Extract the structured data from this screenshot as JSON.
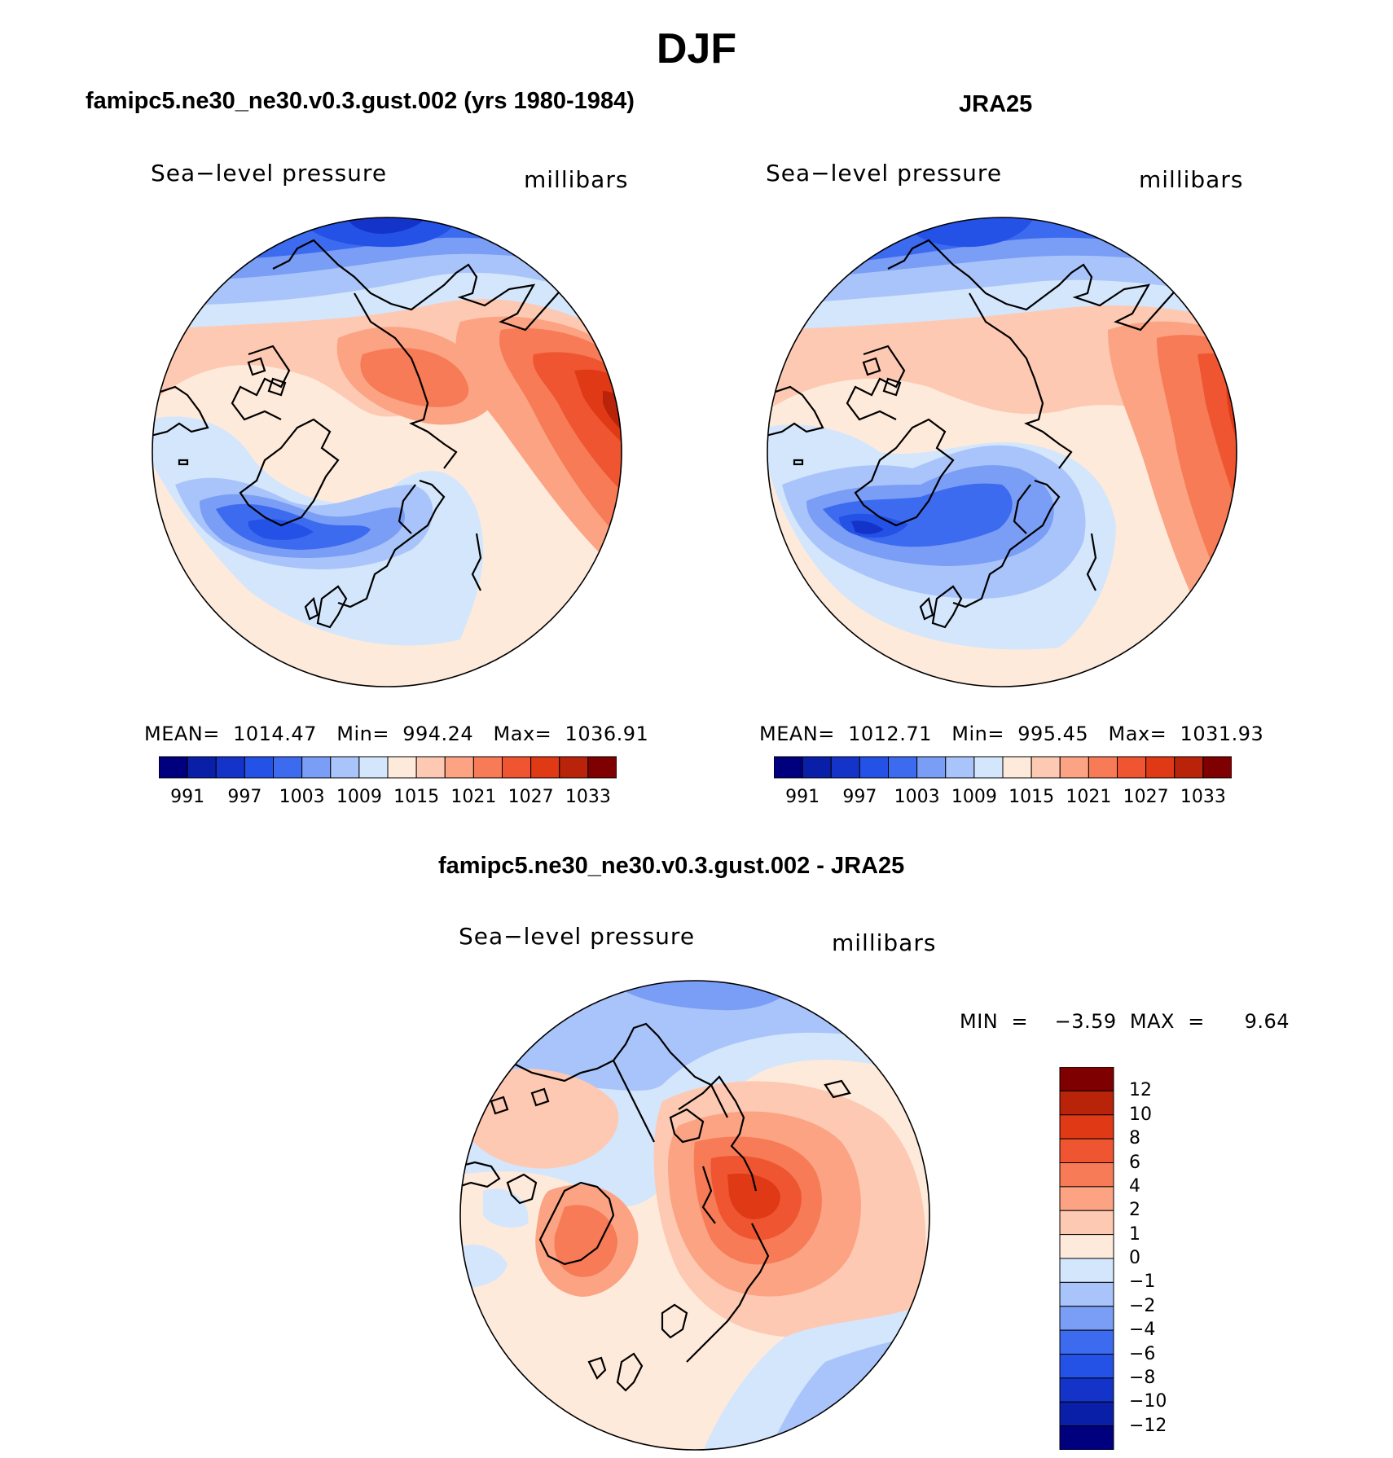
{
  "figure": {
    "title": "DJF"
  },
  "panels": [
    {
      "title": "famipc5.ne30_ne30.v0.3.gust.002 (yrs 1980-1984)",
      "variable": "Sea−level pressure",
      "units": "millibars",
      "stats": "MEAN=  1014.47   Min=  994.24   Max=  1036.91",
      "colorbar_labels": [
        "991",
        "997",
        "1003",
        "1009",
        "1015",
        "1021",
        "1027",
        "1033"
      ]
    },
    {
      "title": "JRA25",
      "variable": "Sea−level pressure",
      "units": "millibars",
      "stats": "MEAN=  1012.71   Min=  995.45   Max=  1031.93",
      "colorbar_labels": [
        "991",
        "997",
        "1003",
        "1009",
        "1015",
        "1021",
        "1027",
        "1033"
      ]
    },
    {
      "title": "famipc5.ne30_ne30.v0.3.gust.002 - JRA25",
      "variable": "Sea−level pressure",
      "units": "millibars",
      "stats": "MIN  =    −3.59  MAX  =      9.64",
      "colorbar_labels": [
        "12",
        "10",
        "8",
        "6",
        "4",
        "2",
        "1",
        "0",
        "−1",
        "−2",
        "−4",
        "−6",
        "−8",
        "−10",
        "−12"
      ]
    }
  ],
  "colors": {
    "slp_scale": [
      "#00007f",
      "#0a1fa8",
      "#1433c9",
      "#2452e6",
      "#3d6bf0",
      "#7a9df5",
      "#a9c4fa",
      "#d4e6fc",
      "#feeadb",
      "#fdc9b2",
      "#fba383",
      "#f67b56",
      "#ef5531",
      "#e03916",
      "#b82309",
      "#7f0000"
    ],
    "diff_scale": [
      "#7f0000",
      "#b82309",
      "#e03916",
      "#ef5531",
      "#f67b56",
      "#fba383",
      "#fdc9b2",
      "#feeadb",
      "#d4e6fc",
      "#a9c4fa",
      "#7a9df5",
      "#3d6bf0",
      "#2452e6",
      "#1433c9",
      "#0a1fa8",
      "#00007f"
    ]
  }
}
